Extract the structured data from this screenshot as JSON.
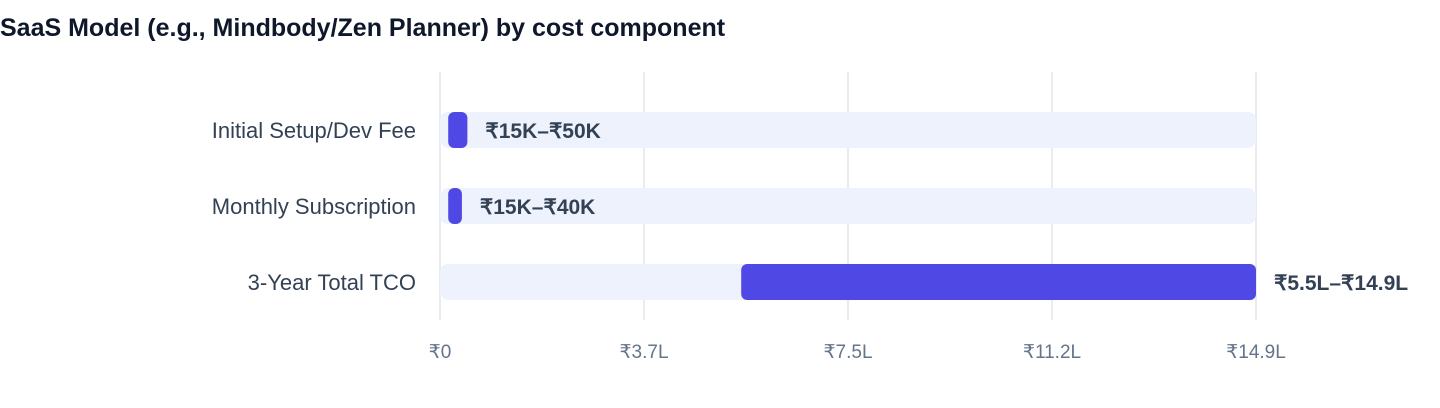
{
  "title": "SaaS Model (e.g., Mindbody/Zen Planner) by cost component",
  "colors": {
    "bar": "#5048e5",
    "track": "#eef2fd",
    "grid": "#e2e5ea"
  },
  "chart_data": {
    "type": "bar",
    "orientation": "horizontal",
    "style": "floating range",
    "unit": "INR",
    "xlim": [
      0,
      1490000
    ],
    "ticks": [
      {
        "value": 0,
        "label": "₹0"
      },
      {
        "value": 372500,
        "label": "₹3.7L"
      },
      {
        "value": 745000,
        "label": "₹7.5L"
      },
      {
        "value": 1117500,
        "label": "₹11.2L"
      },
      {
        "value": 1490000,
        "label": "₹14.9L"
      }
    ],
    "grid": true,
    "categories": [
      "Initial Setup/Dev Fee",
      "Monthly Subscription",
      "3-Year Total TCO"
    ],
    "ranges": [
      {
        "low": 15000,
        "high": 50000,
        "label": "₹15K–₹50K"
      },
      {
        "low": 15000,
        "high": 40000,
        "label": "₹15K–₹40K"
      },
      {
        "low": 550000,
        "high": 1490000,
        "label": "₹5.5L–₹14.9L"
      }
    ]
  }
}
